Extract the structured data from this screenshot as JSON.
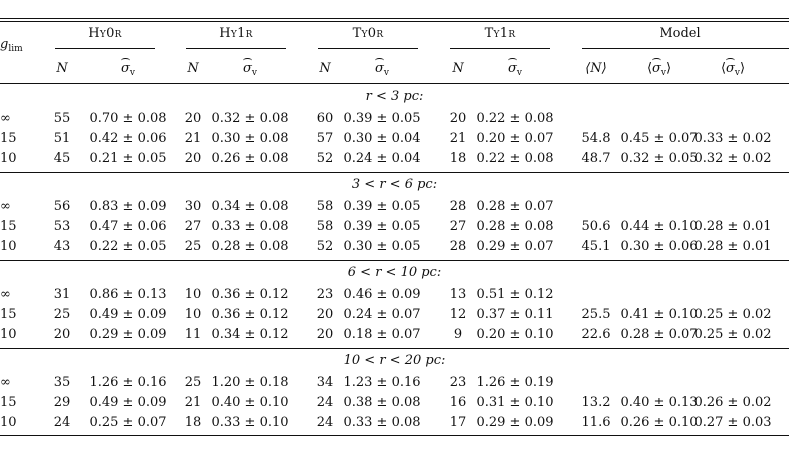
{
  "header": {
    "row_label": "g",
    "row_label_sub": "lim",
    "groups": [
      "Hy0r",
      "Hy1r",
      "Ty0r",
      "Ty1r",
      "Model"
    ],
    "sub_cols": [
      "N",
      "σ",
      "N",
      "σ",
      "N",
      "σ",
      "N",
      "σ",
      "⟨N⟩",
      "⟨σ⟩",
      "⟨σ⟩"
    ],
    "sigma_sub": "v"
  },
  "sections": [
    {
      "title": "r < 3 pc:",
      "rows": [
        {
          "g": "∞",
          "cells": [
            "55",
            "0.70 ± 0.08",
            "20",
            "0.32 ± 0.08",
            "60",
            "0.39 ± 0.05",
            "20",
            "0.22 ± 0.08",
            "",
            "",
            ""
          ]
        },
        {
          "g": "15",
          "cells": [
            "51",
            "0.42 ± 0.06",
            "21",
            "0.30 ± 0.08",
            "57",
            "0.30 ± 0.04",
            "21",
            "0.20 ± 0.07",
            "54.8",
            "0.45 ± 0.07",
            "0.33 ± 0.02"
          ]
        },
        {
          "g": "10",
          "cells": [
            "45",
            "0.21 ± 0.05",
            "20",
            "0.26 ± 0.08",
            "52",
            "0.24 ± 0.04",
            "18",
            "0.22 ± 0.08",
            "48.7",
            "0.32 ± 0.05",
            "0.32 ± 0.02"
          ]
        }
      ]
    },
    {
      "title": "3 < r < 6 pc:",
      "rows": [
        {
          "g": "∞",
          "cells": [
            "56",
            "0.83 ± 0.09",
            "30",
            "0.34 ± 0.08",
            "58",
            "0.39 ± 0.05",
            "28",
            "0.28 ± 0.07",
            "",
            "",
            ""
          ]
        },
        {
          "g": "15",
          "cells": [
            "53",
            "0.47 ± 0.06",
            "27",
            "0.33 ± 0.08",
            "58",
            "0.39 ± 0.05",
            "27",
            "0.28 ± 0.08",
            "50.6",
            "0.44 ± 0.10",
            "0.28 ± 0.01"
          ]
        },
        {
          "g": "10",
          "cells": [
            "43",
            "0.22 ± 0.05",
            "25",
            "0.28 ± 0.08",
            "52",
            "0.30 ± 0.05",
            "28",
            "0.29 ± 0.07",
            "45.1",
            "0.30 ± 0.06",
            "0.28 ± 0.01"
          ]
        }
      ]
    },
    {
      "title": "6 < r < 10 pc:",
      "rows": [
        {
          "g": "∞",
          "cells": [
            "31",
            "0.86 ± 0.13",
            "10",
            "0.36 ± 0.12",
            "23",
            "0.46 ± 0.09",
            "13",
            "0.51 ± 0.12",
            "",
            "",
            ""
          ]
        },
        {
          "g": "15",
          "cells": [
            "25",
            "0.49 ± 0.09",
            "10",
            "0.36 ± 0.12",
            "20",
            "0.24 ± 0.07",
            "12",
            "0.37 ± 0.11",
            "25.5",
            "0.41 ± 0.10",
            "0.25 ± 0.02"
          ]
        },
        {
          "g": "10",
          "cells": [
            "20",
            "0.29 ± 0.09",
            "11",
            "0.34 ± 0.12",
            "20",
            "0.18 ± 0.07",
            "9",
            "0.20 ± 0.10",
            "22.6",
            "0.28 ± 0.07",
            "0.25 ± 0.02"
          ]
        }
      ]
    },
    {
      "title": "10 < r < 20 pc:",
      "rows": [
        {
          "g": "∞",
          "cells": [
            "35",
            "1.26 ± 0.16",
            "25",
            "1.20 ± 0.18",
            "34",
            "1.23 ± 0.16",
            "23",
            "1.26 ± 0.19",
            "",
            "",
            ""
          ]
        },
        {
          "g": "15",
          "cells": [
            "29",
            "0.49 ± 0.09",
            "21",
            "0.40 ± 0.10",
            "24",
            "0.38 ± 0.08",
            "16",
            "0.31 ± 0.10",
            "13.2",
            "0.40 ± 0.13",
            "0.26 ± 0.02"
          ]
        },
        {
          "g": "10",
          "cells": [
            "24",
            "0.25 ± 0.07",
            "18",
            "0.33 ± 0.10",
            "24",
            "0.33 ± 0.08",
            "17",
            "0.29 ± 0.09",
            "11.6",
            "0.26 ± 0.10",
            "0.27 ± 0.03"
          ]
        }
      ]
    }
  ]
}
